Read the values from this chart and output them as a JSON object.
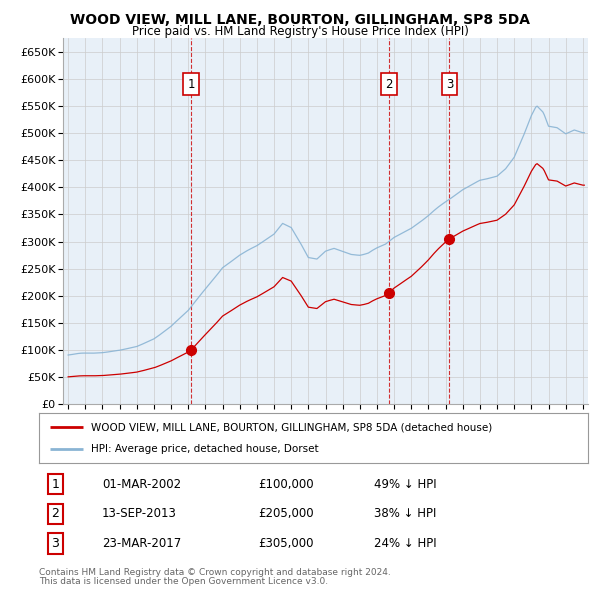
{
  "title": "WOOD VIEW, MILL LANE, BOURTON, GILLINGHAM, SP8 5DA",
  "subtitle": "Price paid vs. HM Land Registry's House Price Index (HPI)",
  "hpi_label": "HPI: Average price, detached house, Dorset",
  "property_label": "WOOD VIEW, MILL LANE, BOURTON, GILLINGHAM, SP8 5DA (detached house)",
  "hpi_color": "#8ab4d4",
  "property_color": "#cc0000",
  "vline_color": "#cc0000",
  "grid_color": "#cccccc",
  "background_color": "#e8f0f8",
  "ylim": [
    0,
    675000
  ],
  "yticks": [
    0,
    50000,
    100000,
    150000,
    200000,
    250000,
    300000,
    350000,
    400000,
    450000,
    500000,
    550000,
    600000,
    650000
  ],
  "xlim_left": 1994.7,
  "xlim_right": 2025.3,
  "sales": [
    {
      "label": "1",
      "date": "01-MAR-2002",
      "price": 100000,
      "below_hpi": "49% ↓ HPI",
      "x": 2002.17
    },
    {
      "label": "2",
      "date": "13-SEP-2013",
      "price": 205000,
      "below_hpi": "38% ↓ HPI",
      "x": 2013.71
    },
    {
      "label": "3",
      "date": "23-MAR-2017",
      "price": 305000,
      "below_hpi": "24% ↓ HPI",
      "x": 2017.22
    }
  ],
  "footnote1": "Contains HM Land Registry data © Crown copyright and database right 2024.",
  "footnote2": "This data is licensed under the Open Government Licence v3.0."
}
